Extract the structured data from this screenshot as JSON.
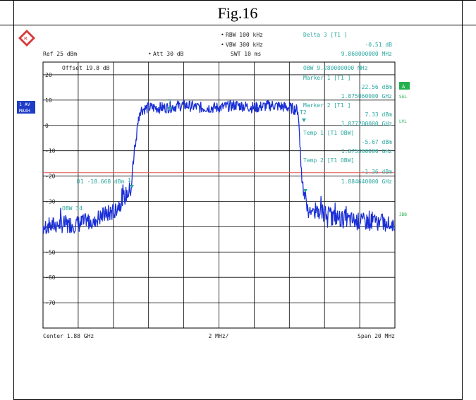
{
  "figure_label": "Fig.16",
  "header": {
    "ref": "Ref  25 dBm",
    "rbw": "RBW  100 kHz",
    "vbw": "VBW  300 kHz",
    "att": "Att  30 dB",
    "swt": "SWT  10 ms",
    "delta_title": "Delta 3 [T1 ]",
    "delta_value": "-0.51 dB",
    "delta_freq": "9.860000000 MHz"
  },
  "offset_label": "Offset  19.8 dB",
  "side_labels": {
    "trace_mode": "1 AV",
    "trace_sub": "MAXH",
    "right_a": "A",
    "right_sgl": "SGL",
    "right_lvl": "LVL",
    "right_3db": "3DB"
  },
  "marker_panel": [
    "OBW  9.280000000 MHz",
    "Marker 1 [T1 ]",
    "-22.56 dBm",
    "1.875060000 GHz",
    "Marker 2 [T1 ]",
    "7.33 dBm",
    "1.877200000 GHz",
    "Temp 1 [T1 OBW]",
    "-5.67 dBm",
    "1.875360000 GHz",
    "Temp 2 [T1 OBW]",
    "-1.36 dBm",
    "1.884640000 GHz"
  ],
  "display_line": "D1 -18.668 dBm",
  "obw_line_label": "OBW  34",
  "marker_tags": {
    "m1": "1",
    "m2": "T2",
    "top": "7"
  },
  "colors": {
    "trace": "#1a2fd6",
    "annotation": "#2aa7a0",
    "display_line": "#e05050",
    "grid": "#000000",
    "badge": "#1f3cc8",
    "badge_green": "#22b14c"
  },
  "chart_data": {
    "type": "line",
    "title": "Fig.16",
    "xlabel": "",
    "ylabel": "",
    "x_center": "Center  1.88 GHz",
    "x_div": "2 MHz/",
    "x_span": "Span  20 MHz",
    "xlim": [
      1.87,
      1.89
    ],
    "ylim": [
      -80,
      25
    ],
    "ytick_values": [
      20,
      10,
      0,
      -10,
      -20,
      -30,
      -40,
      -50,
      -60,
      -70
    ],
    "ytick_labels": [
      "20",
      "10",
      "0",
      "-10",
      "-20",
      "-30",
      "-40",
      "-50",
      "-60",
      "-70"
    ],
    "display_line_dbm": -18.668,
    "x": [
      1.87,
      1.871,
      1.872,
      1.873,
      1.874,
      1.875,
      1.8752,
      1.8755,
      1.876,
      1.877,
      1.878,
      1.879,
      1.88,
      1.881,
      1.882,
      1.883,
      1.884,
      1.8845,
      1.8847,
      1.885,
      1.886,
      1.887,
      1.888,
      1.889,
      1.89
    ],
    "y": [
      -40,
      -39,
      -39,
      -37,
      -34,
      -25,
      -10,
      6,
      7,
      7,
      8,
      7,
      7,
      8,
      7,
      8,
      7,
      6,
      -20,
      -33,
      -35,
      -37,
      -38,
      -38,
      -39
    ],
    "grid": true,
    "legend": "none"
  }
}
